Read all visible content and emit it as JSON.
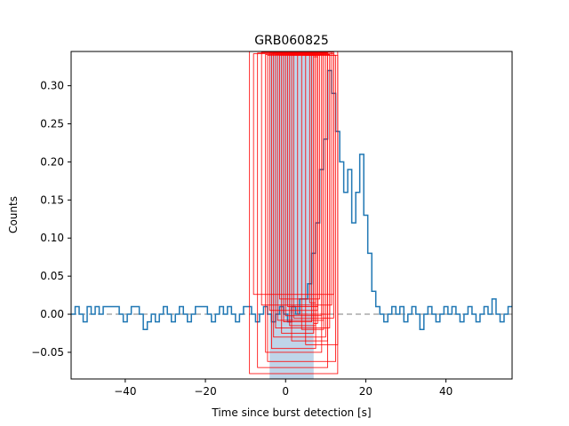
{
  "chart_data": {
    "type": "line",
    "title": "GRB060825",
    "xlabel": "Time since burst detection [s]",
    "ylabel": "Counts",
    "xlim": [
      -53.5,
      56.5
    ],
    "ylim": [
      -0.085,
      0.345
    ],
    "xticks": [
      -40,
      -20,
      0,
      20,
      40
    ],
    "yticks": [
      -0.05,
      0.0,
      0.05,
      0.1,
      0.15,
      0.2,
      0.25,
      0.3
    ],
    "ytick_labels": [
      "−0.05",
      "0.00",
      "0.05",
      "0.10",
      "0.15",
      "0.20",
      "0.25",
      "0.30"
    ],
    "xtick_labels": [
      "−40",
      "−20",
      "0",
      "20",
      "40"
    ],
    "zero_line": {
      "y": 0,
      "style": "dashed",
      "color": "#7f7f7f"
    },
    "shaded_interval": {
      "x_start": -4.0,
      "x_end": 7.0,
      "color": "#a9c7e1"
    },
    "series": [
      {
        "style": "step",
        "color": "#1f77b4",
        "bin_width": 1.0,
        "x_start": -53.5,
        "values": [
          0.0,
          0.01,
          0.0,
          -0.01,
          0.01,
          0.0,
          0.01,
          0.0,
          0.01,
          0.01,
          0.01,
          0.01,
          0.0,
          -0.01,
          0.0,
          0.01,
          0.01,
          0.0,
          -0.02,
          -0.01,
          0.0,
          -0.01,
          0.0,
          0.01,
          0.0,
          -0.01,
          0.0,
          0.01,
          0.0,
          -0.01,
          0.0,
          0.01,
          0.01,
          0.01,
          0.0,
          -0.01,
          0.0,
          0.01,
          0.0,
          0.01,
          0.0,
          -0.01,
          0.0,
          0.01,
          0.01,
          0.0,
          -0.01,
          0.0,
          0.01,
          0.0,
          -0.01,
          0.0,
          0.01,
          0.0,
          -0.01,
          0.01,
          0.0,
          0.02,
          0.02,
          0.04,
          0.08,
          0.12,
          0.19,
          0.23,
          0.32,
          0.29,
          0.24,
          0.2,
          0.16,
          0.19,
          0.12,
          0.16,
          0.21,
          0.13,
          0.08,
          0.03,
          0.01,
          0.0,
          -0.01,
          0.0,
          0.01,
          0.0,
          0.01,
          -0.01,
          0.0,
          0.01,
          0.0,
          -0.02,
          0.0,
          0.01,
          0.0,
          -0.01,
          0.0,
          0.01,
          0.0,
          0.01,
          0.0,
          -0.01,
          0.0,
          0.01,
          0.0,
          -0.01,
          0.0,
          0.01,
          0.0,
          0.02,
          0.0,
          -0.01,
          0.0,
          0.01
        ]
      }
    ],
    "boxes": {
      "color": "#ff0000",
      "items": [
        {
          "x0": -9.0,
          "x1": 13.0,
          "y0": -0.078,
          "y1": 0.345
        },
        {
          "x0": -8.0,
          "x1": 12.0,
          "y0": 0.026,
          "y1": 0.342
        },
        {
          "x0": -7.0,
          "x1": 10.5,
          "y0": -0.07,
          "y1": 0.343
        },
        {
          "x0": -6.0,
          "x1": 11.5,
          "y0": 0.012,
          "y1": 0.344
        },
        {
          "x0": -5.0,
          "x1": 9.0,
          "y0": -0.05,
          "y1": 0.341
        },
        {
          "x0": -4.5,
          "x1": 12.5,
          "y0": -0.062,
          "y1": 0.34
        },
        {
          "x0": -4.0,
          "x1": 8.0,
          "y0": 0.005,
          "y1": 0.343
        },
        {
          "x0": -3.5,
          "x1": 7.5,
          "y0": -0.045,
          "y1": 0.342
        },
        {
          "x0": -3.0,
          "x1": 10.0,
          "y0": -0.03,
          "y1": 0.344
        },
        {
          "x0": -2.5,
          "x1": 11.0,
          "y0": -0.018,
          "y1": 0.341
        },
        {
          "x0": -2.0,
          "x1": 9.5,
          "y0": -0.008,
          "y1": 0.343
        },
        {
          "x0": -1.5,
          "x1": 8.5,
          "y0": 0.02,
          "y1": 0.34
        },
        {
          "x0": -1.0,
          "x1": 7.0,
          "y0": -0.025,
          "y1": 0.342
        },
        {
          "x0": -0.5,
          "x1": 6.5,
          "y0": -0.01,
          "y1": 0.344
        },
        {
          "x0": 0.0,
          "x1": 9.0,
          "y0": -0.002,
          "y1": 0.341
        },
        {
          "x0": 0.5,
          "x1": 8.0,
          "y0": 0.01,
          "y1": 0.343
        },
        {
          "x0": 1.0,
          "x1": 7.5,
          "y0": -0.015,
          "y1": 0.34
        },
        {
          "x0": 1.5,
          "x1": 10.5,
          "y0": -0.035,
          "y1": 0.342
        },
        {
          "x0": 2.0,
          "x1": 12.0,
          "y0": -0.005,
          "y1": 0.344
        },
        {
          "x0": 3.0,
          "x1": 11.0,
          "y0": 0.0,
          "y1": 0.341
        },
        {
          "x0": 4.0,
          "x1": 9.5,
          "y0": -0.02,
          "y1": 0.343
        },
        {
          "x0": 5.0,
          "x1": 13.0,
          "y0": -0.04,
          "y1": 0.34
        },
        {
          "x0": 6.0,
          "x1": 7.5,
          "y0": 0.015,
          "y1": 0.342
        },
        {
          "x0": 7.0,
          "x1": 8.0,
          "y0": -0.012,
          "y1": 0.338
        }
      ]
    },
    "grid": false
  }
}
